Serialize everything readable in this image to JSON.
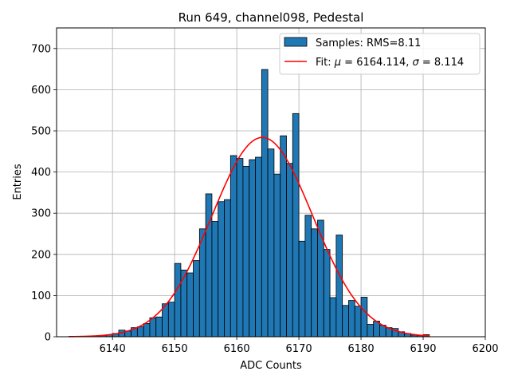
{
  "chart_data": {
    "type": "bar",
    "title": "Run 649, channel098, Pedestal",
    "xlabel": "ADC Counts",
    "ylabel": "Entries",
    "xlim": [
      6131,
      6200
    ],
    "ylim": [
      0,
      750
    ],
    "xticks": [
      6140,
      6150,
      6160,
      6170,
      6180,
      6190,
      6200
    ],
    "yticks": [
      0,
      100,
      200,
      300,
      400,
      500,
      600,
      700
    ],
    "grid": true,
    "legend_position": "top-right",
    "histogram": {
      "name": "Samples: RMS=8.11",
      "color": "#1f77b4",
      "bin_width": 1,
      "bin_start": 6133,
      "counts": [
        1,
        1,
        1,
        1,
        2,
        3,
        5,
        8,
        16,
        14,
        22,
        24,
        32,
        46,
        48,
        80,
        84,
        178,
        162,
        155,
        185,
        262,
        347,
        280,
        328,
        333,
        440,
        433,
        414,
        430,
        436,
        649,
        456,
        395,
        488,
        421,
        542,
        232,
        295,
        262,
        283,
        212,
        95,
        247,
        76,
        88,
        74,
        96,
        30,
        38,
        28,
        22,
        20,
        12,
        8,
        4,
        3,
        5
      ]
    },
    "fit": {
      "name": "Fit: μ = 6164.114, σ = 8.114",
      "color": "#ff0000",
      "mu": 6164.114,
      "sigma": 8.114,
      "peak": 484,
      "range": [
        6133,
        6191
      ]
    }
  }
}
